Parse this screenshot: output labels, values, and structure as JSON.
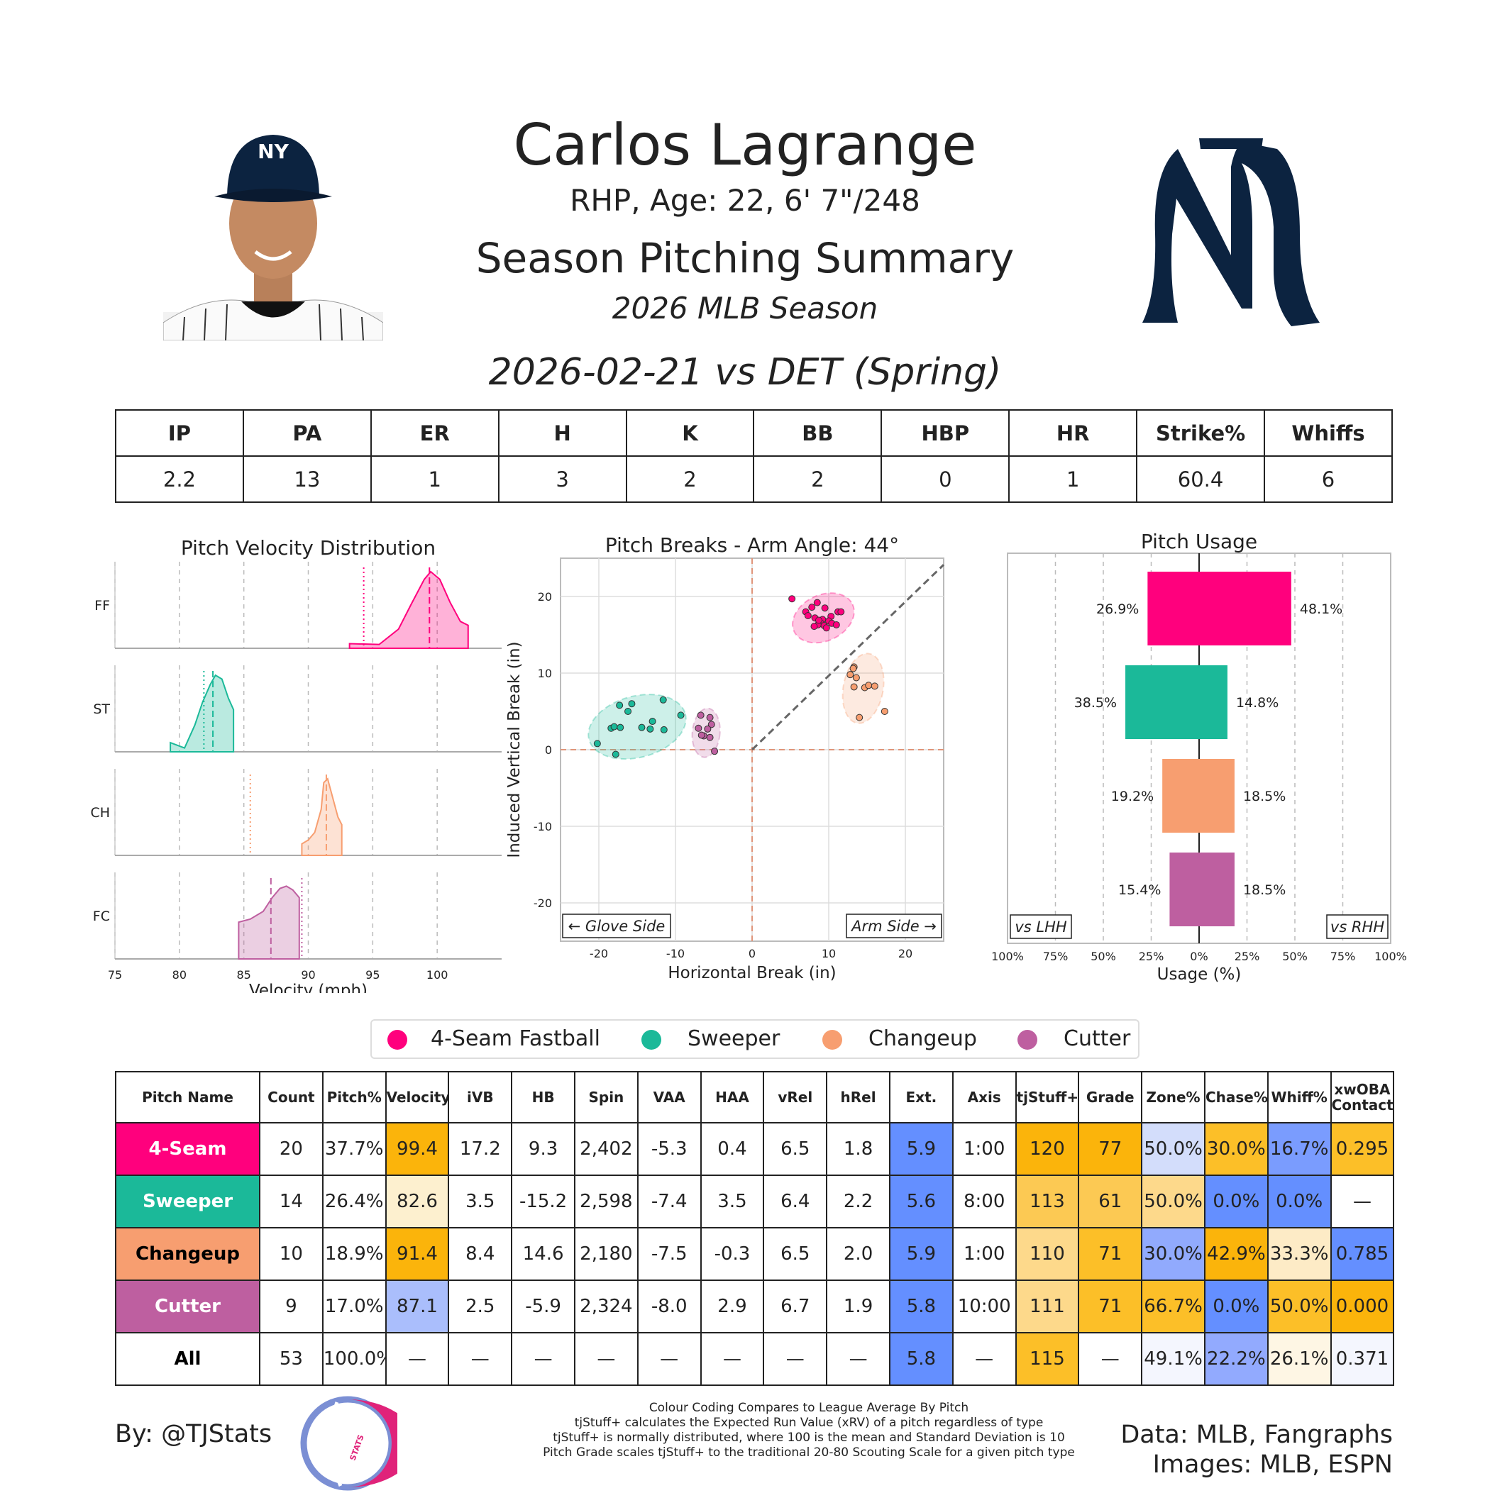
{
  "header": {
    "player_name": "Carlos Lagrange",
    "player_info": "RHP, Age: 22, 6' 7\"/248",
    "summary_title": "Season Pitching Summary",
    "season": "2026 MLB Season",
    "game": "2026-02-21 vs DET (Spring)"
  },
  "colors": {
    "FF": "#FF007D",
    "ST": "#1BB999",
    "CH": "#F79E70",
    "FC": "#BE5FA0",
    "navy": "#0C2340",
    "high": "#FBB40B",
    "low": "#648FFF"
  },
  "game_stats": {
    "headers": [
      "IP",
      "PA",
      "ER",
      "H",
      "K",
      "BB",
      "HBP",
      "HR",
      "Strike%",
      "Whiffs"
    ],
    "values": [
      "2.2",
      "13",
      "1",
      "3",
      "2",
      "2",
      "0",
      "1",
      "60.4",
      "6"
    ]
  },
  "chart_data": [
    {
      "type": "area",
      "title": "Pitch Velocity Distribution",
      "xlabel": "Velocity (mph)",
      "xlim": [
        75,
        105
      ],
      "xticks": [
        "75",
        "80",
        "85",
        "90",
        "95",
        "100"
      ],
      "rows": [
        {
          "label": "FF",
          "color": "#FF007D",
          "mean": 99.4,
          "league_mean": 94.3,
          "x": [
            93.2,
            95.5,
            97.0,
            98.0,
            99.0,
            99.5,
            100.2,
            101.0,
            101.8,
            102.4
          ],
          "density": [
            0.06,
            0.05,
            0.25,
            0.58,
            0.9,
            1.0,
            0.9,
            0.6,
            0.35,
            0.3
          ]
        },
        {
          "label": "ST",
          "color": "#1BB999",
          "mean": 82.6,
          "league_mean": 81.9,
          "x": [
            79.3,
            80.4,
            81.2,
            81.8,
            82.4,
            82.8,
            83.3,
            83.8,
            84.2
          ],
          "density": [
            0.12,
            0.05,
            0.35,
            0.65,
            0.88,
            1.0,
            0.95,
            0.7,
            0.55
          ]
        },
        {
          "label": "CH",
          "color": "#F79E70",
          "mean": 91.4,
          "league_mean": 85.5,
          "x": [
            89.5,
            90.0,
            90.5,
            91.0,
            91.2,
            91.5,
            91.9,
            92.3,
            92.6
          ],
          "density": [
            0.15,
            0.2,
            0.3,
            0.6,
            0.95,
            1.0,
            0.75,
            0.5,
            0.4
          ]
        },
        {
          "label": "FC",
          "color": "#BE5FA0",
          "mean": 87.1,
          "league_mean": 89.5,
          "x": [
            84.6,
            85.5,
            86.5,
            87.2,
            87.8,
            88.3,
            88.8,
            89.3
          ],
          "density": [
            0.48,
            0.52,
            0.62,
            0.8,
            0.92,
            0.95,
            0.9,
            0.8
          ]
        }
      ]
    },
    {
      "type": "scatter",
      "title": "Pitch Breaks - Arm Angle: 44°",
      "xlabel": "Horizontal Break (in)",
      "ylabel": "Induced Vertical Break (in)",
      "xlim": [
        -25,
        25
      ],
      "ylim": [
        -25,
        25
      ],
      "xticks": [
        "-20",
        "-10",
        "0",
        "10",
        "20"
      ],
      "yticks": [
        "20",
        "10",
        "0",
        "-10",
        "-20"
      ],
      "annotations": [
        "← Glove Side",
        "Arm Side →"
      ],
      "arm_angle_deg": 44,
      "series": [
        {
          "name": "4-Seam Fastball",
          "color": "#FF007D",
          "points": [
            [
              5.2,
              19.7
            ],
            [
              7.0,
              18.0
            ],
            [
              8.5,
              19.2
            ],
            [
              9.5,
              18.5
            ],
            [
              11.2,
              18.0
            ],
            [
              11.6,
              18.0
            ],
            [
              8.2,
              17.2
            ],
            [
              9.2,
              17.0
            ],
            [
              10.3,
              17.4
            ],
            [
              7.3,
              17.5
            ],
            [
              9.0,
              16.5
            ],
            [
              10.0,
              16.8
            ],
            [
              8.6,
              16.3
            ],
            [
              10.4,
              16.5
            ],
            [
              9.4,
              16.2
            ],
            [
              8.1,
              16.1
            ],
            [
              9.7,
              15.9
            ],
            [
              11.0,
              16.3
            ],
            [
              7.8,
              18.6
            ],
            [
              8.7,
              16.9
            ]
          ],
          "ellipse": {
            "cx": 9.3,
            "cy": 17.2,
            "rx": 4.2,
            "ry": 3.0,
            "angle": 25
          }
        },
        {
          "name": "Sweeper",
          "color": "#1BB999",
          "points": [
            [
              -20.2,
              0.8
            ],
            [
              -18.4,
              2.8
            ],
            [
              -18.0,
              3.0
            ],
            [
              -17.2,
              2.9
            ],
            [
              -16.2,
              5.0
            ],
            [
              -15.7,
              6.0
            ],
            [
              -17.3,
              5.8
            ],
            [
              -11.6,
              6.5
            ],
            [
              -9.3,
              4.5
            ],
            [
              -14.4,
              2.9
            ],
            [
              -13.3,
              2.7
            ],
            [
              -11.5,
              2.6
            ],
            [
              -13.0,
              3.7
            ],
            [
              -17.8,
              -0.6
            ]
          ],
          "ellipse": {
            "cx": -15.0,
            "cy": 3.0,
            "rx": 6.5,
            "ry": 4.0,
            "angle": 15
          }
        },
        {
          "name": "Changeup",
          "color": "#F79E70",
          "points": [
            [
              13.3,
              10.8
            ],
            [
              13.2,
              10.6
            ],
            [
              12.8,
              9.8
            ],
            [
              13.6,
              9.4
            ],
            [
              13.3,
              8.2
            ],
            [
              14.7,
              8.1
            ],
            [
              15.2,
              8.4
            ],
            [
              16.0,
              8.3
            ],
            [
              14.0,
              4.2
            ],
            [
              17.3,
              5.0
            ]
          ],
          "ellipse": {
            "cx": 14.5,
            "cy": 8.0,
            "rx": 2.6,
            "ry": 4.6,
            "angle": -10
          }
        },
        {
          "name": "Cutter",
          "color": "#BE5FA0",
          "points": [
            [
              -6.7,
              4.5
            ],
            [
              -5.5,
              4.2
            ],
            [
              -5.3,
              3.3
            ],
            [
              -7.0,
              2.8
            ],
            [
              -5.8,
              2.7
            ],
            [
              -6.3,
              1.8
            ],
            [
              -5.5,
              1.6
            ],
            [
              -6.6,
              1.9
            ],
            [
              -4.9,
              -0.2
            ]
          ],
          "ellipse": {
            "cx": -6.0,
            "cy": 2.2,
            "rx": 1.8,
            "ry": 3.2,
            "angle": -5
          }
        }
      ]
    },
    {
      "type": "bar",
      "title": "Pitch Usage",
      "xlabel": "Usage (%)",
      "xlim": [
        -100,
        100
      ],
      "xticks": [
        "100%",
        "75%",
        "50%",
        "25%",
        "0%",
        "25%",
        "50%",
        "75%",
        "100%"
      ],
      "annotations": [
        "vs LHH",
        "vs RHH"
      ],
      "categories": [
        "4-Seam Fastball",
        "Sweeper",
        "Changeup",
        "Cutter"
      ],
      "colors": [
        "#FF007D",
        "#1BB999",
        "#F79E70",
        "#BE5FA0"
      ],
      "series": [
        {
          "name": "vs LHH",
          "values": [
            26.9,
            38.5,
            19.2,
            15.4
          ],
          "labels": [
            "26.9%",
            "38.5%",
            "19.2%",
            "15.4%"
          ]
        },
        {
          "name": "vs RHH",
          "values": [
            48.1,
            14.8,
            18.5,
            18.5
          ],
          "labels": [
            "48.1%",
            "14.8%",
            "18.5%",
            "18.5%"
          ]
        }
      ]
    }
  ],
  "legend": [
    {
      "name": "4-Seam Fastball",
      "color": "#FF007D"
    },
    {
      "name": "Sweeper",
      "color": "#1BB999"
    },
    {
      "name": "Changeup",
      "color": "#F79E70"
    },
    {
      "name": "Cutter",
      "color": "#BE5FA0"
    }
  ],
  "pitch_table": {
    "headers": [
      "Pitch Name",
      "Count",
      "Pitch%",
      "Velocity",
      "iVB",
      "HB",
      "Spin",
      "VAA",
      "HAA",
      "vRel",
      "hRel",
      "Ext.",
      "Axis",
      "tjStuff+",
      "Grade",
      "Zone%",
      "Chase%",
      "Whiff%",
      "xwOBA Contact"
    ],
    "rows": [
      {
        "name": "4-Seam",
        "name_bg": "#FF007D",
        "name_fg": "#ffffff",
        "cells": [
          "20",
          "37.7%",
          "99.4",
          "17.2",
          "9.3",
          "2,402",
          "-5.3",
          "0.4",
          "6.5",
          "1.8",
          "5.9",
          "1:00",
          "120",
          "77",
          "50.0%",
          "30.0%",
          "16.7%",
          "0.295"
        ],
        "bgs": [
          "",
          "",
          "#FBB40B",
          "",
          "",
          "",
          "",
          "",
          "",
          "",
          "#648FFF",
          "",
          "#FBB40B",
          "#FBB40B",
          "#D3DDFB",
          "#FCBF28",
          "#7A9CFE",
          "#FCBF28"
        ]
      },
      {
        "name": "Sweeper",
        "name_bg": "#1BB999",
        "name_fg": "#ffffff",
        "cells": [
          "14",
          "26.4%",
          "82.6",
          "3.5",
          "-15.2",
          "2,598",
          "-7.4",
          "3.5",
          "6.4",
          "2.2",
          "5.6",
          "8:00",
          "113",
          "61",
          "50.0%",
          "0.0%",
          "0.0%",
          "—"
        ],
        "bgs": [
          "",
          "",
          "#FDF0CF",
          "",
          "",
          "",
          "",
          "",
          "",
          "",
          "#648FFF",
          "",
          "#FCC953",
          "#FCC953",
          "#FDD98B",
          "#648FFF",
          "#648FFF",
          ""
        ]
      },
      {
        "name": "Changeup",
        "name_bg": "#F79E70",
        "name_fg": "#000000",
        "cells": [
          "10",
          "18.9%",
          "91.4",
          "8.4",
          "14.6",
          "2,180",
          "-7.5",
          "-0.3",
          "6.5",
          "2.0",
          "5.9",
          "1:00",
          "110",
          "71",
          "30.0%",
          "42.9%",
          "33.3%",
          "0.785"
        ],
        "bgs": [
          "",
          "",
          "#FBB40B",
          "",
          "",
          "",
          "",
          "",
          "",
          "",
          "#648FFF",
          "",
          "#FDD98B",
          "#FCBF28",
          "#91AAFD",
          "#FBB40B",
          "#FDEBC6",
          "#648FFF"
        ]
      },
      {
        "name": "Cutter",
        "name_bg": "#BE5FA0",
        "name_fg": "#ffffff",
        "cells": [
          "9",
          "17.0%",
          "87.1",
          "2.5",
          "-5.9",
          "2,324",
          "-8.0",
          "2.9",
          "6.7",
          "1.9",
          "5.8",
          "10:00",
          "111",
          "71",
          "66.7%",
          "0.0%",
          "50.0%",
          "0.000"
        ],
        "bgs": [
          "",
          "",
          "#AABEFC",
          "",
          "",
          "",
          "",
          "",
          "",
          "",
          "#648FFF",
          "",
          "#FDD98B",
          "#FCBF28",
          "#FCBF28",
          "#648FFF",
          "#FCBF28",
          "#FBB40B"
        ]
      },
      {
        "name": "All",
        "name_bg": "#ffffff",
        "name_fg": "#000000",
        "cells": [
          "53",
          "100.0%",
          "—",
          "—",
          "—",
          "—",
          "—",
          "—",
          "—",
          "—",
          "5.8",
          "—",
          "115",
          "—",
          "49.1%",
          "22.2%",
          "26.1%",
          "0.371"
        ],
        "bgs": [
          "",
          "",
          "",
          "",
          "",
          "",
          "",
          "",
          "",
          "",
          "#648FFF",
          "",
          "#FCBF28",
          "",
          "#F4F6FE",
          "#92AAFE",
          "#FEF6E4",
          "#F4F6FE"
        ]
      }
    ]
  },
  "footer": {
    "author": "By: @TJStats",
    "notes": [
      "Colour Coding Compares to League Average By Pitch",
      "tjStuff+ calculates the Expected Run Value (xRV) of a pitch regardless of type",
      "tjStuff+ is normally distributed, where 100 is the mean and Standard Deviation is 10",
      "Pitch Grade scales tjStuff+ to the traditional 20-80 Scouting Scale for a given pitch type"
    ],
    "sources": [
      "Data: MLB, Fangraphs",
      "Images: MLB, ESPN"
    ]
  },
  "logos": {
    "team_logo_text": "NY",
    "tjstats_logo_text": "STATS"
  }
}
